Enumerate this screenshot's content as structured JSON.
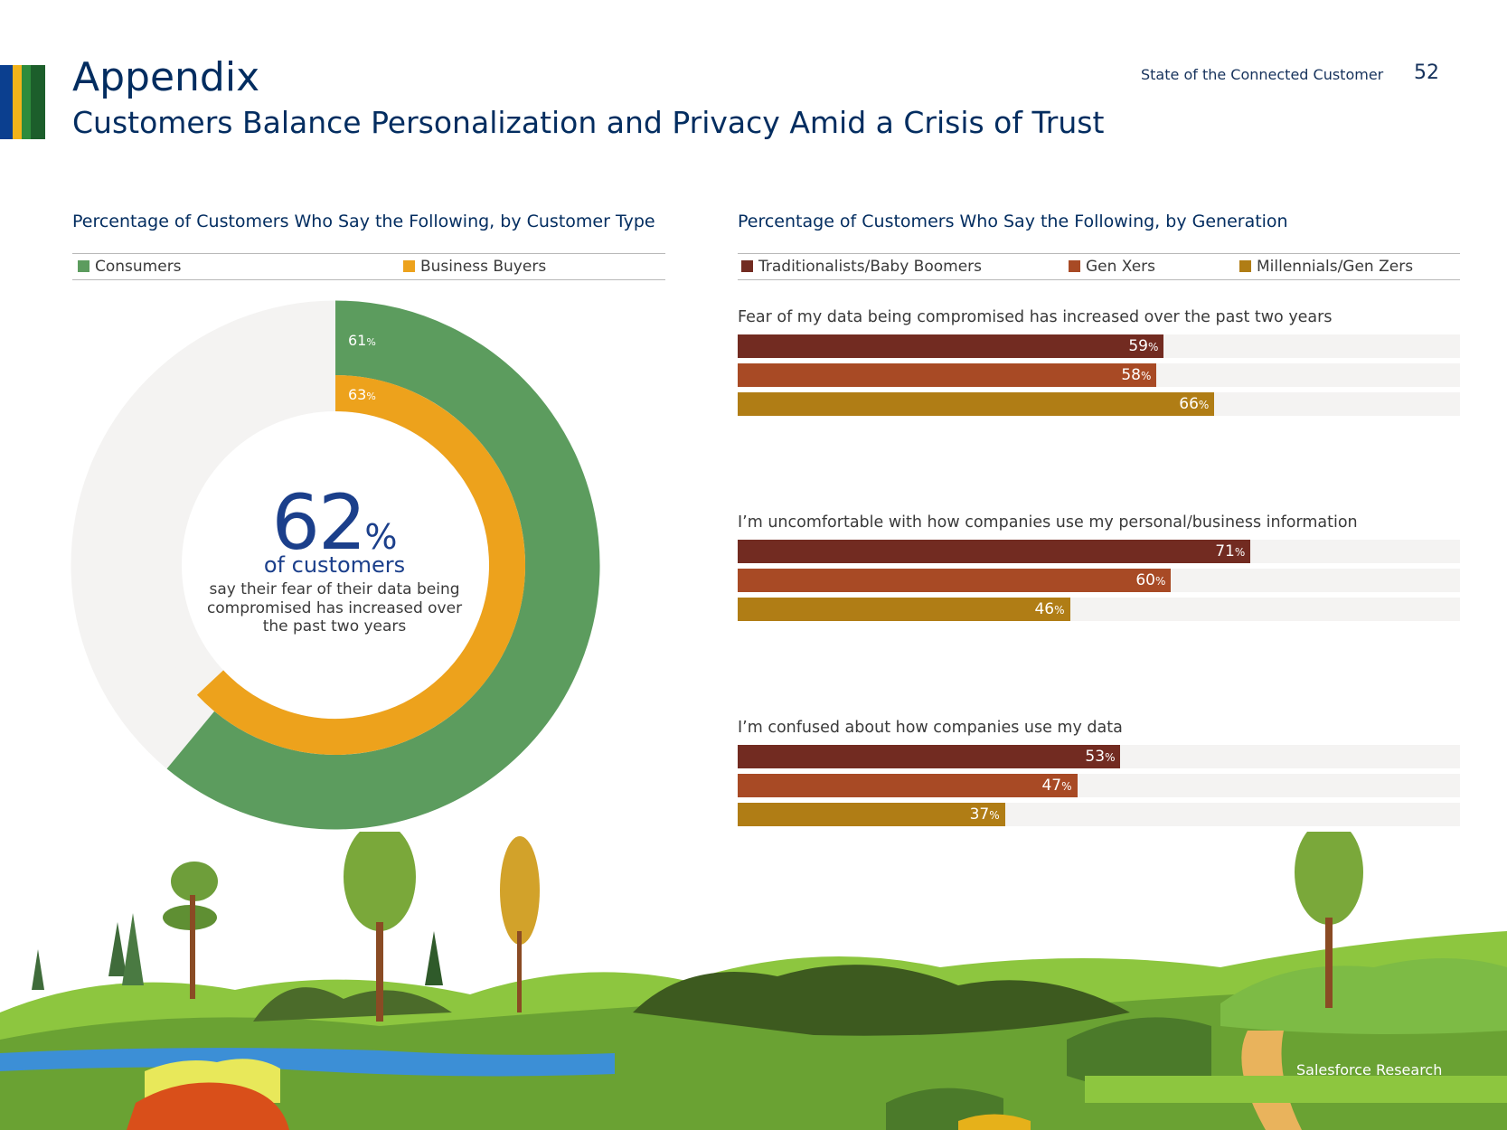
{
  "header": {
    "title": "Appendix",
    "subtitle": "Customers Balance Personalization and Privacy Amid a Crisis of Trust",
    "report_name": "State of the Connected Customer",
    "page_number": "52"
  },
  "colors": {
    "accent_stripes": [
      "#0b3f8f",
      "#f2b31a",
      "#2e8b3c",
      "#1c5e2b"
    ],
    "consumers": "#5c9c5e",
    "business_buyers": "#eda21c",
    "track": "#f4f3f2",
    "traditionalists": "#722b21",
    "gen_x": "#a84a25",
    "millennials": "#b07d15"
  },
  "chart_data": [
    {
      "type": "donut",
      "title": "Percentage of Customers Who Say the Following, by Customer Type",
      "legend": [
        "Consumers",
        "Business Buyers"
      ],
      "series": [
        {
          "name": "Consumers",
          "value": 61,
          "label": "61",
          "unit": "%"
        },
        {
          "name": "Business Buyers",
          "value": 63,
          "label": "63",
          "unit": "%"
        }
      ],
      "center": {
        "value": "62",
        "unit": "%",
        "subtitle": "of customers",
        "description": "say their fear of their data being compromised has increased over the past two years"
      }
    },
    {
      "type": "bar",
      "title": "Percentage of Customers Who Say the Following, by Generation",
      "legend": [
        "Traditionalists/Baby Boomers",
        "Gen Xers",
        "Millennials/Gen Zers"
      ],
      "xlim": [
        0,
        100
      ],
      "groups": [
        {
          "question": "Fear of my data being compromised has increased over the past two years",
          "values": [
            59,
            58,
            66
          ],
          "labels": [
            "59",
            "58",
            "66"
          ]
        },
        {
          "question": "I’m uncomfortable with how companies use my personal/business information",
          "values": [
            71,
            60,
            46
          ],
          "labels": [
            "71",
            "60",
            "46"
          ]
        },
        {
          "question": "I’m confused about how companies use my data",
          "values": [
            53,
            47,
            37
          ],
          "labels": [
            "53",
            "47",
            "37"
          ]
        }
      ],
      "unit": "%"
    }
  ],
  "footer": {
    "brand": "Salesforce Research"
  }
}
